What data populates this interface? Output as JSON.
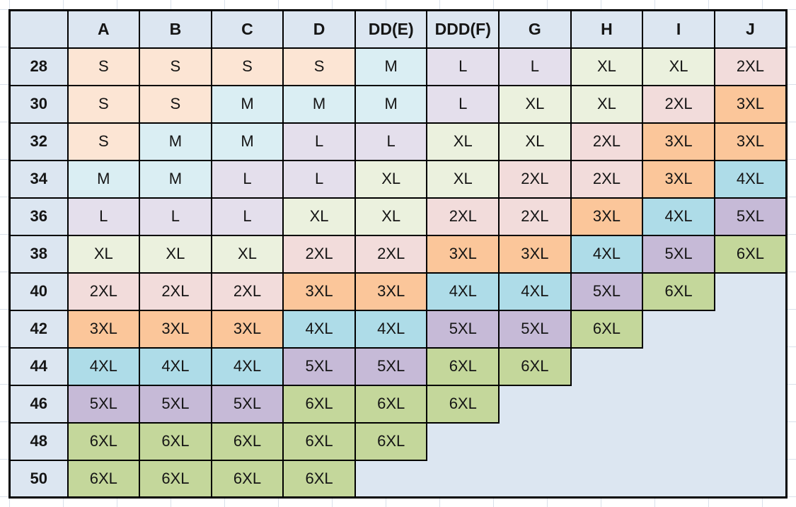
{
  "chart_data": {
    "type": "table",
    "corner_label": "",
    "columns": [
      "A",
      "B",
      "C",
      "D",
      "DD(E)",
      "DDD(F)",
      "G",
      "H",
      "I",
      "J"
    ],
    "rows": [
      {
        "band": "28",
        "sizes": [
          "S",
          "S",
          "S",
          "S",
          "M",
          "L",
          "L",
          "XL",
          "XL",
          "2XL"
        ]
      },
      {
        "band": "30",
        "sizes": [
          "S",
          "S",
          "M",
          "M",
          "M",
          "L",
          "XL",
          "XL",
          "2XL",
          "3XL"
        ]
      },
      {
        "band": "32",
        "sizes": [
          "S",
          "M",
          "M",
          "L",
          "L",
          "XL",
          "XL",
          "2XL",
          "3XL",
          "3XL"
        ]
      },
      {
        "band": "34",
        "sizes": [
          "M",
          "M",
          "L",
          "L",
          "XL",
          "XL",
          "2XL",
          "2XL",
          "3XL",
          "4XL"
        ]
      },
      {
        "band": "36",
        "sizes": [
          "L",
          "L",
          "L",
          "XL",
          "XL",
          "2XL",
          "2XL",
          "3XL",
          "4XL",
          "5XL"
        ]
      },
      {
        "band": "38",
        "sizes": [
          "XL",
          "XL",
          "XL",
          "2XL",
          "2XL",
          "3XL",
          "3XL",
          "4XL",
          "5XL",
          "6XL"
        ]
      },
      {
        "band": "40",
        "sizes": [
          "2XL",
          "2XL",
          "2XL",
          "3XL",
          "3XL",
          "4XL",
          "4XL",
          "5XL",
          "6XL",
          ""
        ]
      },
      {
        "band": "42",
        "sizes": [
          "3XL",
          "3XL",
          "3XL",
          "4XL",
          "4XL",
          "5XL",
          "5XL",
          "6XL",
          "",
          ""
        ]
      },
      {
        "band": "44",
        "sizes": [
          "4XL",
          "4XL",
          "4XL",
          "5XL",
          "5XL",
          "6XL",
          "6XL",
          "",
          "",
          ""
        ]
      },
      {
        "band": "46",
        "sizes": [
          "5XL",
          "5XL",
          "5XL",
          "6XL",
          "6XL",
          "6XL",
          "",
          "",
          "",
          ""
        ]
      },
      {
        "band": "48",
        "sizes": [
          "6XL",
          "6XL",
          "6XL",
          "6XL",
          "6XL",
          "",
          "",
          "",
          "",
          ""
        ]
      },
      {
        "band": "50",
        "sizes": [
          "6XL",
          "6XL",
          "6XL",
          "6XL",
          "",
          "",
          "",
          "",
          "",
          ""
        ]
      }
    ],
    "size_colors": {
      "S": "#fce5d4",
      "M": "#daeef3",
      "L": "#e4dfec",
      "XL": "#ebf1de",
      "2XL": "#f2dcdb",
      "3XL": "#fbc69a",
      "4XL": "#aedce8",
      "5XL": "#c6bad7",
      "6XL": "#c4d79b"
    },
    "colors": {
      "header_bg": "#dce6f1",
      "row_header_bg": "#dce6f1",
      "empty_bg": "#dce6f1",
      "border": "#000000",
      "text": "#151515",
      "margin_gridline": "#d9e0ea",
      "page_bg": "#ffffff"
    }
  }
}
